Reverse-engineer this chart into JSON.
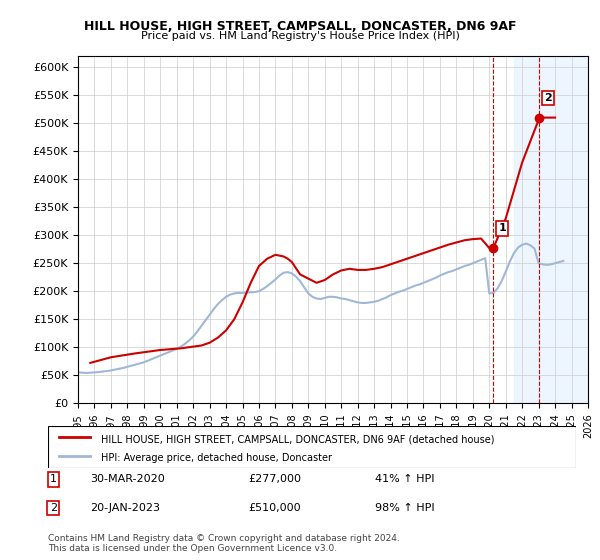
{
  "title": "HILL HOUSE, HIGH STREET, CAMPSALL, DONCASTER, DN6 9AF",
  "subtitle": "Price paid vs. HM Land Registry's House Price Index (HPI)",
  "ylim": [
    0,
    620000
  ],
  "yticks": [
    0,
    50000,
    100000,
    150000,
    200000,
    250000,
    300000,
    350000,
    400000,
    450000,
    500000,
    550000,
    600000
  ],
  "ytick_labels": [
    "£0",
    "£50K",
    "£100K",
    "£150K",
    "£200K",
    "£250K",
    "£300K",
    "£350K",
    "£400K",
    "£450K",
    "£500K",
    "£550K",
    "£600K"
  ],
  "xlim_start": 1995,
  "xlim_end": 2026,
  "xticks": [
    1995,
    1996,
    1997,
    1998,
    1999,
    2000,
    2001,
    2002,
    2003,
    2004,
    2005,
    2006,
    2007,
    2008,
    2009,
    2010,
    2011,
    2012,
    2013,
    2014,
    2015,
    2016,
    2017,
    2018,
    2019,
    2020,
    2021,
    2022,
    2023,
    2024,
    2025,
    2026
  ],
  "property_color": "#cc0000",
  "hpi_color": "#a0b8d8",
  "marker1_x": 2020.25,
  "marker1_y": 277000,
  "marker1_label": "1",
  "marker1_date": "30-MAR-2020",
  "marker1_price": "£277,000",
  "marker1_hpi": "41% ↑ HPI",
  "marker2_x": 2023.05,
  "marker2_y": 510000,
  "marker2_label": "2",
  "marker2_date": "20-JAN-2023",
  "marker2_price": "£510,000",
  "marker2_hpi": "98% ↑ HPI",
  "legend_property": "HILL HOUSE, HIGH STREET, CAMPSALL, DONCASTER, DN6 9AF (detached house)",
  "legend_hpi": "HPI: Average price, detached house, Doncaster",
  "footer": "Contains HM Land Registry data © Crown copyright and database right 2024.\nThis data is licensed under the Open Government Licence v3.0.",
  "hpi_data_x": [
    1995.0,
    1995.25,
    1995.5,
    1995.75,
    1996.0,
    1996.25,
    1996.5,
    1996.75,
    1997.0,
    1997.25,
    1997.5,
    1997.75,
    1998.0,
    1998.25,
    1998.5,
    1998.75,
    1999.0,
    1999.25,
    1999.5,
    1999.75,
    2000.0,
    2000.25,
    2000.5,
    2000.75,
    2001.0,
    2001.25,
    2001.5,
    2001.75,
    2002.0,
    2002.25,
    2002.5,
    2002.75,
    2003.0,
    2003.25,
    2003.5,
    2003.75,
    2004.0,
    2004.25,
    2004.5,
    2004.75,
    2005.0,
    2005.25,
    2005.5,
    2005.75,
    2006.0,
    2006.25,
    2006.5,
    2006.75,
    2007.0,
    2007.25,
    2007.5,
    2007.75,
    2008.0,
    2008.25,
    2008.5,
    2008.75,
    2009.0,
    2009.25,
    2009.5,
    2009.75,
    2010.0,
    2010.25,
    2010.5,
    2010.75,
    2011.0,
    2011.25,
    2011.5,
    2011.75,
    2012.0,
    2012.25,
    2012.5,
    2012.75,
    2013.0,
    2013.25,
    2013.5,
    2013.75,
    2014.0,
    2014.25,
    2014.5,
    2014.75,
    2015.0,
    2015.25,
    2015.5,
    2015.75,
    2016.0,
    2016.25,
    2016.5,
    2016.75,
    2017.0,
    2017.25,
    2017.5,
    2017.75,
    2018.0,
    2018.25,
    2018.5,
    2018.75,
    2019.0,
    2019.25,
    2019.5,
    2019.75,
    2020.0,
    2020.25,
    2020.5,
    2020.75,
    2021.0,
    2021.25,
    2021.5,
    2021.75,
    2022.0,
    2022.25,
    2022.5,
    2022.75,
    2023.0,
    2023.25,
    2023.5,
    2023.75,
    2024.0,
    2024.25,
    2024.5
  ],
  "hpi_data_y": [
    55000,
    54500,
    54000,
    54500,
    55000,
    55500,
    56500,
    57500,
    58500,
    60000,
    61500,
    63000,
    65000,
    67000,
    69000,
    71000,
    73000,
    76000,
    79000,
    82000,
    85000,
    88000,
    91000,
    94000,
    97000,
    101000,
    106000,
    112000,
    119000,
    128000,
    138000,
    148000,
    158000,
    168000,
    177000,
    184000,
    190000,
    194000,
    196000,
    197000,
    197000,
    197500,
    198000,
    198500,
    200000,
    204000,
    209000,
    215000,
    221000,
    228000,
    233000,
    234000,
    232000,
    226000,
    218000,
    207000,
    196000,
    190000,
    187000,
    186000,
    188000,
    190000,
    190000,
    189000,
    187000,
    186000,
    184000,
    182000,
    180000,
    179000,
    179000,
    180000,
    181000,
    183000,
    186000,
    189000,
    193000,
    196000,
    199000,
    201000,
    204000,
    207000,
    210000,
    212000,
    215000,
    218000,
    221000,
    224000,
    228000,
    231000,
    234000,
    236000,
    239000,
    242000,
    245000,
    247000,
    250000,
    253000,
    256000,
    259000,
    196000,
    197000,
    205000,
    218000,
    235000,
    253000,
    268000,
    278000,
    283000,
    285000,
    282000,
    276000,
    250000,
    248000,
    247000,
    248000,
    250000,
    252000,
    254000
  ],
  "property_data_x": [
    1995.75,
    1997.0,
    1998.5,
    2000.0,
    2001.25,
    2002.5,
    2003.0,
    2003.5,
    2004.0,
    2004.5,
    2005.0,
    2005.5,
    2006.0,
    2006.5,
    2007.0,
    2007.5,
    2007.75,
    2008.0,
    2008.5,
    2009.5,
    2010.0,
    2010.5,
    2011.0,
    2011.5,
    2012.0,
    2012.5,
    2013.0,
    2013.5,
    2014.0,
    2014.5,
    2015.0,
    2015.5,
    2016.0,
    2016.5,
    2017.0,
    2017.5,
    2018.0,
    2018.5,
    2019.0,
    2019.5,
    2020.0,
    2020.25,
    2021.0,
    2022.0,
    2023.05,
    2024.0
  ],
  "property_data_y": [
    72000,
    82000,
    89000,
    95000,
    98000,
    103000,
    108000,
    117000,
    130000,
    150000,
    180000,
    215000,
    245000,
    258000,
    265000,
    262000,
    258000,
    252000,
    230000,
    215000,
    220000,
    230000,
    237000,
    240000,
    238000,
    238000,
    240000,
    243000,
    248000,
    253000,
    258000,
    263000,
    268000,
    273000,
    278000,
    283000,
    287000,
    291000,
    293000,
    294000,
    277000,
    277000,
    330000,
    430000,
    510000,
    510000
  ],
  "vline1_x": 2020.25,
  "vline2_x": 2023.05,
  "bg_shade_x1": 2021.5,
  "bg_shade_x2": 2026.0
}
